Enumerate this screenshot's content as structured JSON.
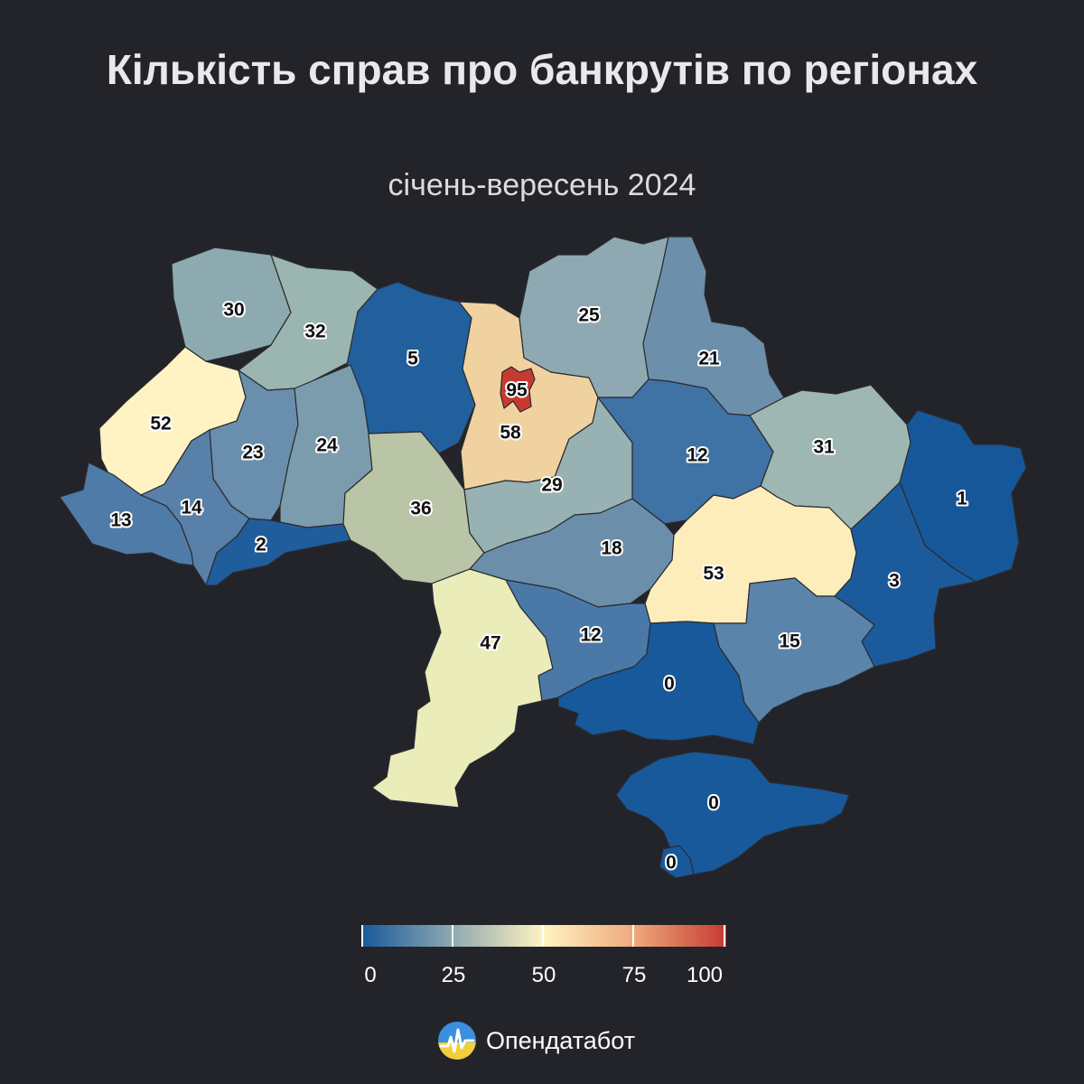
{
  "title": "Кількість справ про банкрутів по регіонах",
  "subtitle": "січень-вересень 2024",
  "brand": {
    "name": "Опендатабот",
    "icon": "opendatabot-logo-icon"
  },
  "legend": {
    "min": 0,
    "max": 100,
    "labels": [
      "0",
      "25",
      "50",
      "75",
      "100"
    ],
    "colors": [
      "#175a9b",
      "#8fa9b0",
      "#fff3c2",
      "#eea87a",
      "#c63a32"
    ]
  },
  "regions": [
    {
      "id": "volyn",
      "value": "30"
    },
    {
      "id": "rivne",
      "value": "32"
    },
    {
      "id": "zhytomyr",
      "value": "5"
    },
    {
      "id": "kyiv-city",
      "value": "95"
    },
    {
      "id": "kyiv-oblast",
      "value": "58"
    },
    {
      "id": "chernihiv",
      "value": "25"
    },
    {
      "id": "sumy",
      "value": "21"
    },
    {
      "id": "lviv",
      "value": "52"
    },
    {
      "id": "ternopil",
      "value": "23"
    },
    {
      "id": "khmelnytskyi",
      "value": "24"
    },
    {
      "id": "poltava",
      "value": "12"
    },
    {
      "id": "kharkiv",
      "value": "31"
    },
    {
      "id": "zakarpattia",
      "value": "13"
    },
    {
      "id": "ivano-frankivsk",
      "value": "14"
    },
    {
      "id": "chernivtsi",
      "value": "2"
    },
    {
      "id": "vinnytsia",
      "value": "36"
    },
    {
      "id": "cherkasy",
      "value": "29"
    },
    {
      "id": "luhansk",
      "value": "1"
    },
    {
      "id": "kirovohrad",
      "value": "18"
    },
    {
      "id": "dnipropetrovsk",
      "value": "53"
    },
    {
      "id": "donetsk",
      "value": "3"
    },
    {
      "id": "odesa",
      "value": "47"
    },
    {
      "id": "mykolaiv",
      "value": "12"
    },
    {
      "id": "zaporizhzhia",
      "value": "15"
    },
    {
      "id": "kherson",
      "value": "0"
    },
    {
      "id": "crimea",
      "value": "0"
    },
    {
      "id": "sevastopol",
      "value": "0"
    }
  ]
}
